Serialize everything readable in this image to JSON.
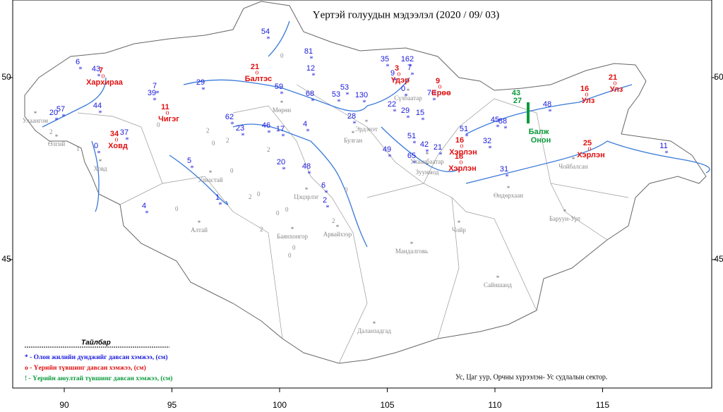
{
  "title": "Үертэй голуудын мэдээлэл (2020 / 09/ 03)",
  "x_ticks": [
    90,
    95,
    100,
    105,
    110,
    115
  ],
  "y_ticks": [
    50,
    45
  ],
  "legend": {
    "title": "Тайлбар",
    "items": [
      "* - Олон жилийн дунджийг давсан хэмжээ, (см)",
      "o - Үерийн түвшинг давсан хэмжээ, (см)",
      "! - Үерийн аюултай түвшинг давсан хэмжээ, (см)"
    ]
  },
  "credit": "Ус, Цаг уур, Орчны хүрээлэн- Ус судлалын сектор.",
  "blue_stations": [
    6,
    43,
    57,
    20,
    44,
    39,
    7,
    0,
    37,
    29,
    54,
    81,
    12,
    59,
    68,
    62,
    23,
    46,
    17,
    4,
    5,
    20,
    48,
    1,
    4,
    6,
    2,
    53,
    53,
    130,
    28,
    35,
    162,
    7,
    9,
    0,
    22,
    29,
    15,
    70,
    49,
    65,
    51,
    42,
    21,
    51,
    45,
    88,
    32,
    31,
    48,
    11
  ],
  "red_stations": [
    {
      "value": 7,
      "name": "Хархираа"
    },
    {
      "value": 11,
      "name": "Чигэг"
    },
    {
      "value": 34,
      "name": "Ховд"
    },
    {
      "value": 21,
      "name": "Балтэс"
    },
    {
      "value": 3,
      "name": "Үдэр"
    },
    {
      "value": 9,
      "name": "Ерөө"
    },
    {
      "value": 16,
      "name": "Хэрлэн"
    },
    {
      "value": 18,
      "name": "Хэрлэн"
    },
    {
      "value": 25,
      "name": "Хэрлэн"
    },
    {
      "value": 16,
      "name": "Улз"
    },
    {
      "value": 21,
      "name": "Улз"
    }
  ],
  "green_stations": [
    {
      "value": 43,
      "name": "Балж"
    },
    {
      "value": 27,
      "name": "Онон"
    }
  ],
  "gray_numbers": [
    2,
    1,
    0,
    2,
    0,
    2,
    0,
    0,
    2,
    0,
    2,
    0,
    0,
    2,
    0,
    0,
    2,
    0,
    0
  ],
  "cities": [
    "Өлгий",
    "Улаангом",
    "Ховд",
    "Улиастай",
    "Алтай",
    "Мөрөн",
    "Эрдэнэт",
    "Булган",
    "Цэцэрлэг",
    "Баянхонгор",
    "Арвайхээр",
    "Улаанбаатар",
    "Зуунмод",
    "Мандалговь",
    "Чойр",
    "Сайншанд",
    "Даланзадгад",
    "Өндөрхаан",
    "Баруун-Урт",
    "Чойбалсан",
    "Сүхбаатар"
  ]
}
